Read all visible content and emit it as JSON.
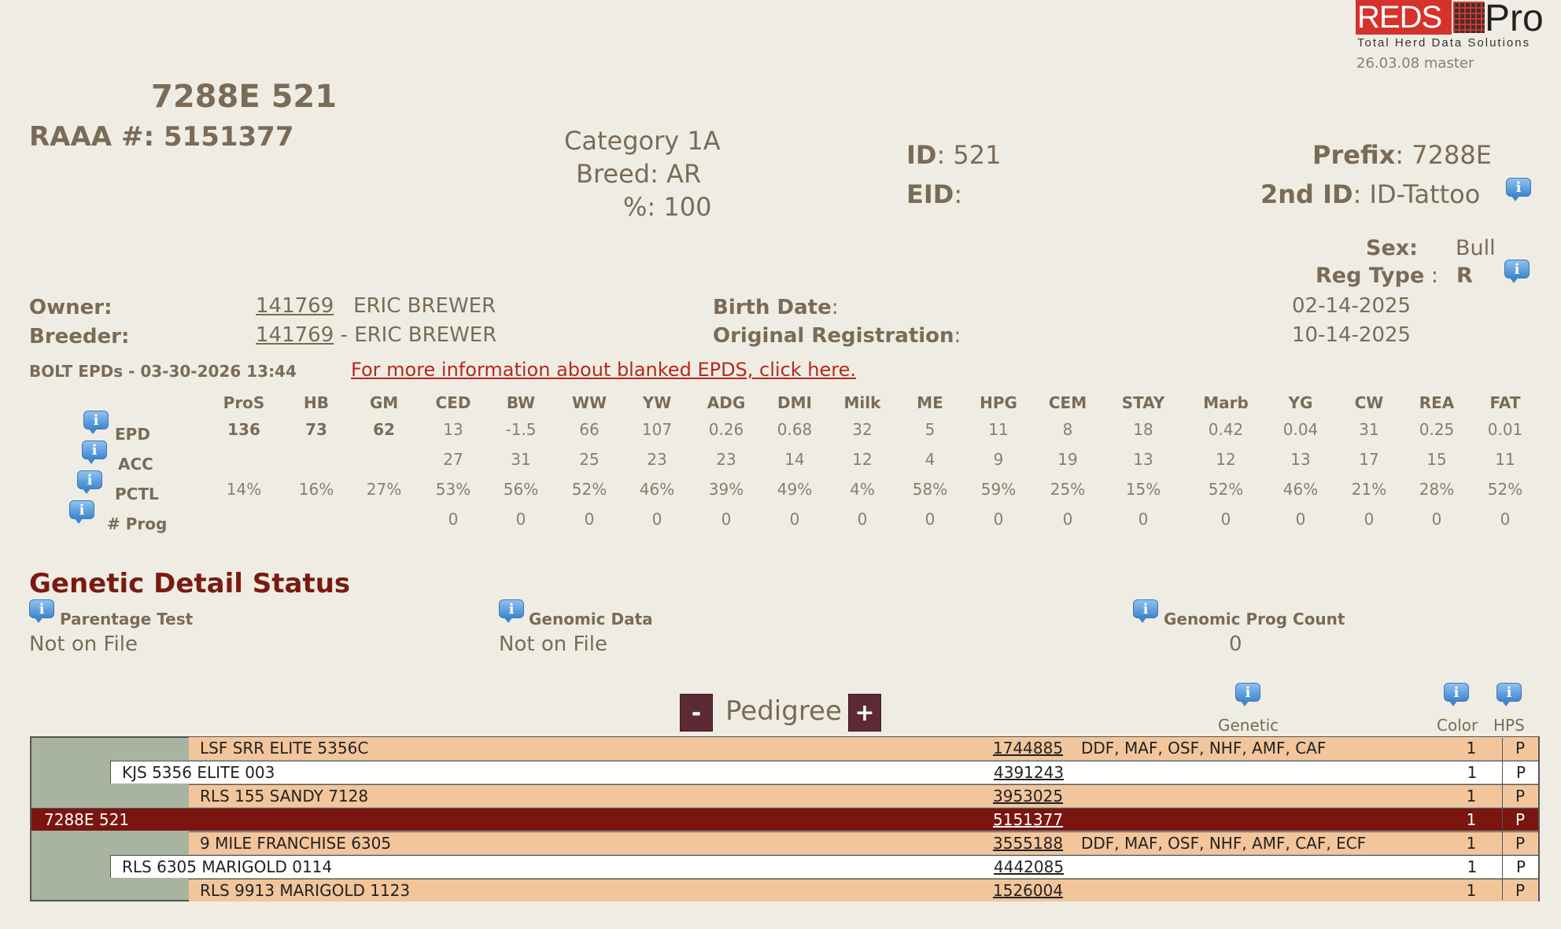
{
  "logo": {
    "brand": "REDS",
    "suffix": "Pro",
    "tagline": "Total Herd Data Solutions"
  },
  "version": "26.03.08 master",
  "animal": {
    "title": "7288E 521",
    "raaa_label": "RAAA #:",
    "raaa_number": "5151377",
    "category": "Category 1A",
    "breed_label": "Breed:",
    "breed": "AR",
    "percent_label": "%:",
    "percent": "100",
    "id_label": "ID",
    "id": "521",
    "eid_label": "EID",
    "eid": "",
    "prefix_label": "Prefix",
    "prefix": "7288E",
    "second_id_label": "2nd ID",
    "second_id": "ID-Tattoo",
    "sex_label": "Sex:",
    "sex": "Bull",
    "reg_type_label": "Reg Type",
    "reg_type": "R",
    "owner_label": "Owner:",
    "owner_id": "141769",
    "owner_name": "ERIC BREWER",
    "breeder_label": "Breeder:",
    "breeder_id": "141769",
    "breeder_name": "ERIC BREWER",
    "birth_date_label": "Birth Date",
    "birth_date": "02-14-2025",
    "orig_reg_label": "Original Registration",
    "orig_reg": "10-14-2025"
  },
  "epd": {
    "header": "BOLT EPDs - 03-30-2026 13:44",
    "info_link": "For more information about blanked EPDS, click here.",
    "columns": [
      "ProS",
      "HB",
      "GM",
      "CED",
      "BW",
      "WW",
      "YW",
      "ADG",
      "DMI",
      "Milk",
      "ME",
      "HPG",
      "CEM",
      "STAY",
      "Marb",
      "YG",
      "CW",
      "REA",
      "FAT"
    ],
    "rows": [
      {
        "label": "EPD",
        "values": [
          "136",
          "73",
          "62",
          "13",
          "-1.5",
          "66",
          "107",
          "0.26",
          "0.68",
          "32",
          "5",
          "11",
          "8",
          "18",
          "0.42",
          "0.04",
          "31",
          "0.25",
          "0.01"
        ]
      },
      {
        "label": "ACC",
        "values": [
          "",
          "",
          "",
          "27",
          "31",
          "25",
          "23",
          "23",
          "14",
          "12",
          "4",
          "9",
          "19",
          "13",
          "12",
          "13",
          "17",
          "15",
          "11"
        ]
      },
      {
        "label": "PCTL",
        "values": [
          "14%",
          "16%",
          "27%",
          "53%",
          "56%",
          "52%",
          "46%",
          "39%",
          "49%",
          "4%",
          "58%",
          "59%",
          "25%",
          "15%",
          "52%",
          "46%",
          "21%",
          "28%",
          "52%"
        ]
      },
      {
        "label": "# Prog",
        "values": [
          "",
          "",
          "",
          "0",
          "0",
          "0",
          "0",
          "0",
          "0",
          "0",
          "0",
          "0",
          "0",
          "0",
          "0",
          "0",
          "0",
          "0",
          "0"
        ]
      }
    ]
  },
  "genetic": {
    "title": "Genetic Detail Status",
    "parentage_label": "Parentage Test",
    "parentage_value": "Not on File",
    "genomic_label": "Genomic Data",
    "genomic_value": "Not on File",
    "prog_count_label": "Genomic Prog Count",
    "prog_count_value": "0"
  },
  "pedigree": {
    "title": "Pedigree",
    "minus": "-",
    "plus": "+",
    "genetic_label": "Genetic",
    "color_label": "Color",
    "hps_label": "HPS",
    "rows": [
      {
        "name": "LSF SRR ELITE 5356C",
        "reg": "1744885",
        "genetic": "DDF, MAF, OSF, NHF, AMF, CAF",
        "color": "1",
        "hps": "P"
      },
      {
        "name": "KJS 5356 ELITE 003",
        "reg": "4391243",
        "genetic": "",
        "color": "1",
        "hps": "P"
      },
      {
        "name": "RLS 155 SANDY 7128",
        "reg": "3953025",
        "genetic": "",
        "color": "1",
        "hps": "P"
      },
      {
        "name": "7288E 521",
        "reg": "5151377",
        "genetic": "",
        "color": "1",
        "hps": "P"
      },
      {
        "name": "9 MILE FRANCHISE 6305",
        "reg": "3555188",
        "genetic": "DDF, MAF, OSF, NHF, AMF, CAF, ECF",
        "color": "1",
        "hps": "P"
      },
      {
        "name": "RLS 6305 MARIGOLD 0114",
        "reg": "4442085",
        "genetic": "",
        "color": "1",
        "hps": "P"
      },
      {
        "name": "RLS 9913 MARIGOLD 1123",
        "reg": "1526004",
        "genetic": "",
        "color": "1",
        "hps": "P"
      }
    ]
  }
}
